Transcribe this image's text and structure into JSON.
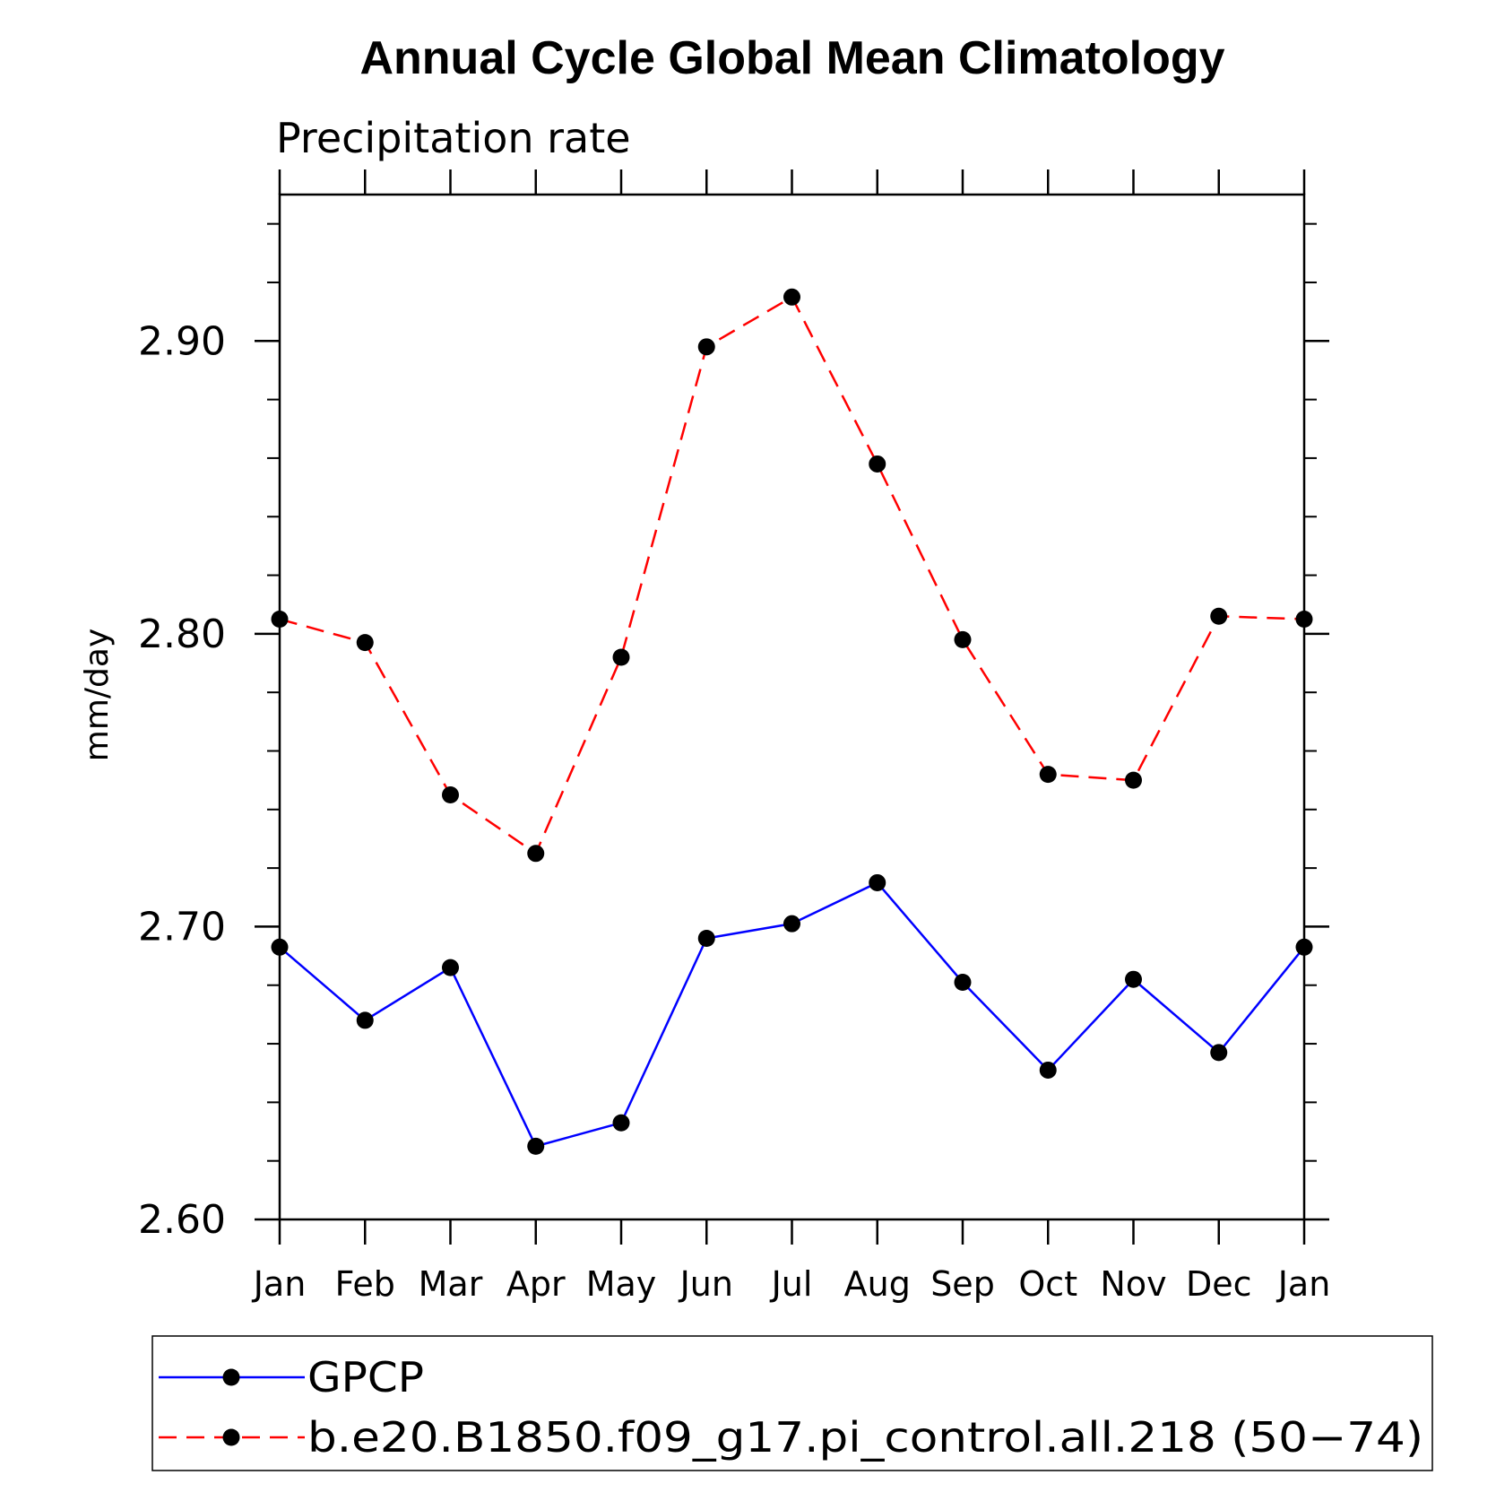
{
  "chart_data": {
    "type": "line",
    "title": "Annual Cycle Global Mean Climatology",
    "subtitle": "Precipitation rate",
    "ylabel": "mm/day",
    "xlabel": "",
    "categories": [
      "Jan",
      "Feb",
      "Mar",
      "Apr",
      "May",
      "Jun",
      "Jul",
      "Aug",
      "Sep",
      "Oct",
      "Nov",
      "Dec",
      "Jan"
    ],
    "ylim": [
      2.6,
      2.95
    ],
    "yticks": [
      "2.60",
      "2.70",
      "2.80",
      "2.90"
    ],
    "ytick_values": [
      2.6,
      2.7,
      2.8,
      2.9
    ],
    "y_minor_step": 0.02,
    "grid": false,
    "legend_position": "bottom",
    "series": [
      {
        "name": "GPCP",
        "color": "#0000ff",
        "line_style": "solid",
        "marker": "filled-circle",
        "values": [
          2.693,
          2.668,
          2.686,
          2.625,
          2.633,
          2.696,
          2.701,
          2.715,
          2.681,
          2.651,
          2.682,
          2.657,
          2.693
        ]
      },
      {
        "name": "b.e20.B1850.f09_g17.pi_control.all.218 (50−74)",
        "color": "#ff0000",
        "line_style": "dashed",
        "marker": "filled-circle",
        "values": [
          2.805,
          2.797,
          2.745,
          2.725,
          2.792,
          2.898,
          2.915,
          2.858,
          2.798,
          2.752,
          2.75,
          2.806,
          2.805
        ]
      }
    ]
  }
}
